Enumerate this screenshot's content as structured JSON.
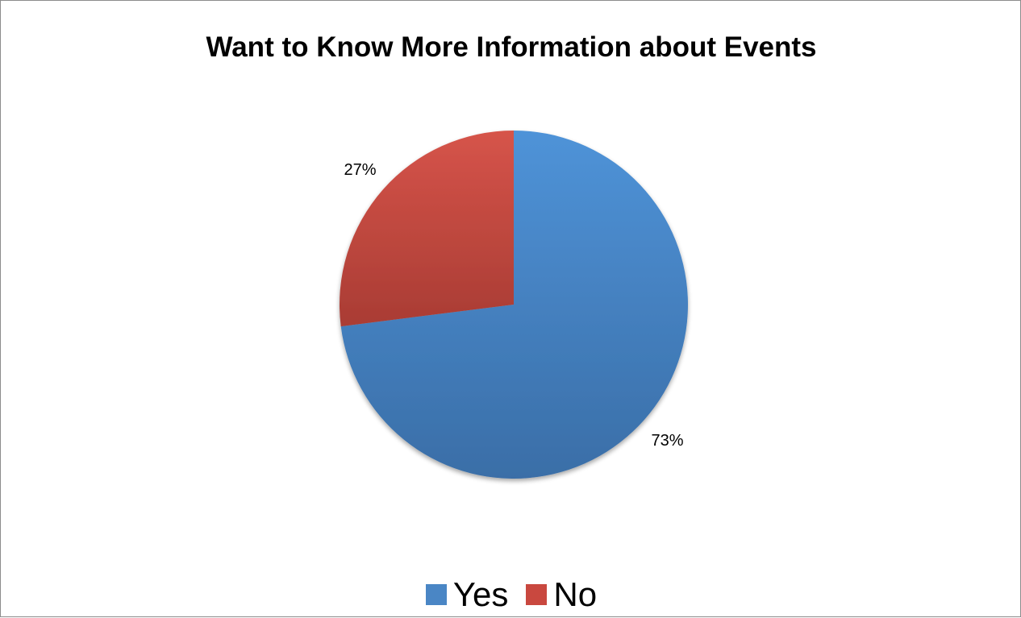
{
  "chart_data": {
    "type": "pie",
    "title": "Want to Know More Information about Events",
    "slices": [
      {
        "label": "Yes",
        "value": 73,
        "data_label": "73%",
        "color": "#4a86c5"
      },
      {
        "label": "No",
        "value": 27,
        "data_label": "27%",
        "color": "#c9483f"
      }
    ],
    "legend": {
      "position": "bottom",
      "items": [
        "Yes",
        "No"
      ]
    }
  }
}
